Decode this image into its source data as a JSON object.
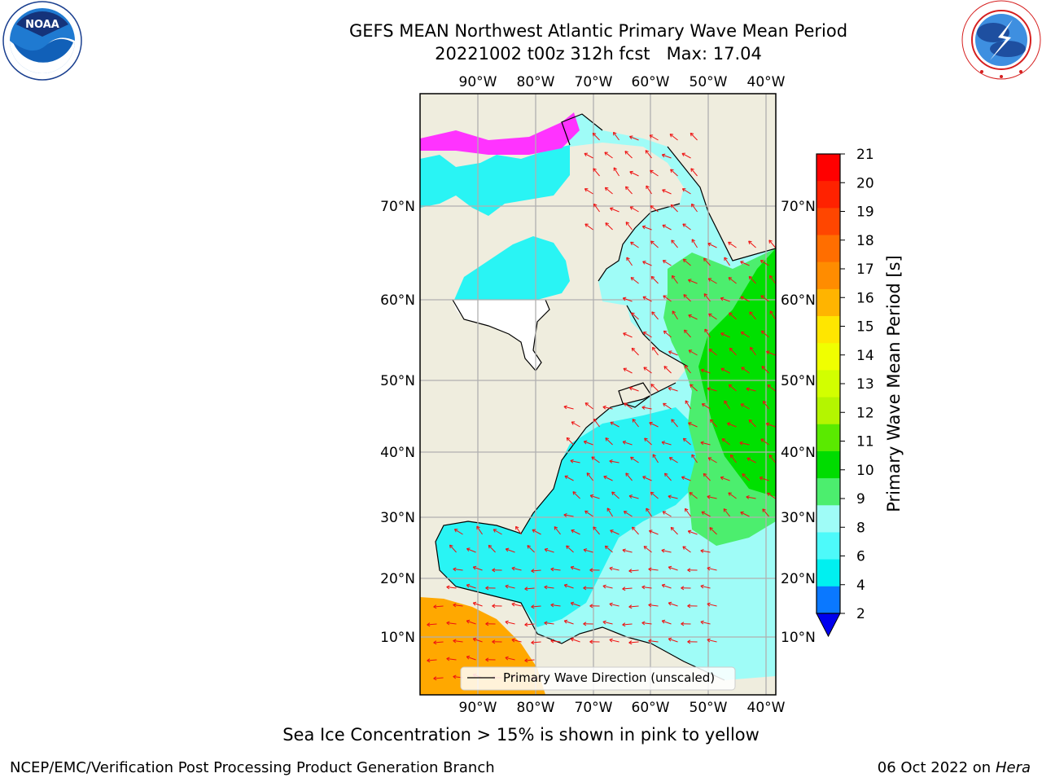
{
  "header": {
    "title_line1": "GEFS MEAN Northwest Atlantic Primary Wave Mean Period",
    "title_line2": "20221002 t00z 312h fcst   Max: 17.04"
  },
  "logos": {
    "noaa_text": "NOAA",
    "noaa_ring_text": "NATIONAL OCEANIC AND ATMOSPHERIC ADMINISTRATION · U.S. DEPARTMENT OF COMMERCE",
    "nws_ring_text": "NATIONAL WEATHER SERVICE"
  },
  "map": {
    "lon_labels": [
      "90°W",
      "80°W",
      "70°W",
      "60°W",
      "50°W",
      "40°W"
    ],
    "lat_labels": [
      "70°N",
      "60°N",
      "50°N",
      "40°N",
      "30°N",
      "20°N",
      "10°N"
    ],
    "legend_label": "Primary Wave Direction (unscaled)",
    "colors": {
      "land": "#efedde",
      "ocean_short": "#9ffcf7",
      "ocean_cyan": "#29f4f4",
      "ocean_green": "#4cee6e",
      "ocean_bright_green": "#00e000",
      "ocean_orange": "#ffa800",
      "arrow": "#ee1111",
      "ice": "#ff33ff"
    }
  },
  "colorbar": {
    "label": "Primary Wave Mean Period [s]",
    "ticks": [
      "21",
      "20",
      "19",
      "18",
      "17",
      "16",
      "15",
      "14",
      "13",
      "12",
      "11",
      "10",
      "9",
      "8",
      "6",
      "4",
      "2"
    ],
    "colors": [
      "#ff0000",
      "#ff2200",
      "#ff4600",
      "#ff6e00",
      "#ff8c00",
      "#ffb400",
      "#ffe600",
      "#f0ff00",
      "#d2ff00",
      "#b4f500",
      "#5aea00",
      "#00dc00",
      "#4cee6e",
      "#9ffcf7",
      "#4dfafa",
      "#00f0f0",
      "#0a78ff"
    ],
    "under_color": "#0000ee"
  },
  "footer": {
    "sea_ice_note": "Sea Ice Concentration > 15% is shown in pink to yellow",
    "credit_left": "NCEP/EMC/Verification Post Processing Product Generation Branch",
    "credit_date": "06 Oct 2022 on ",
    "credit_host": "Hera"
  }
}
